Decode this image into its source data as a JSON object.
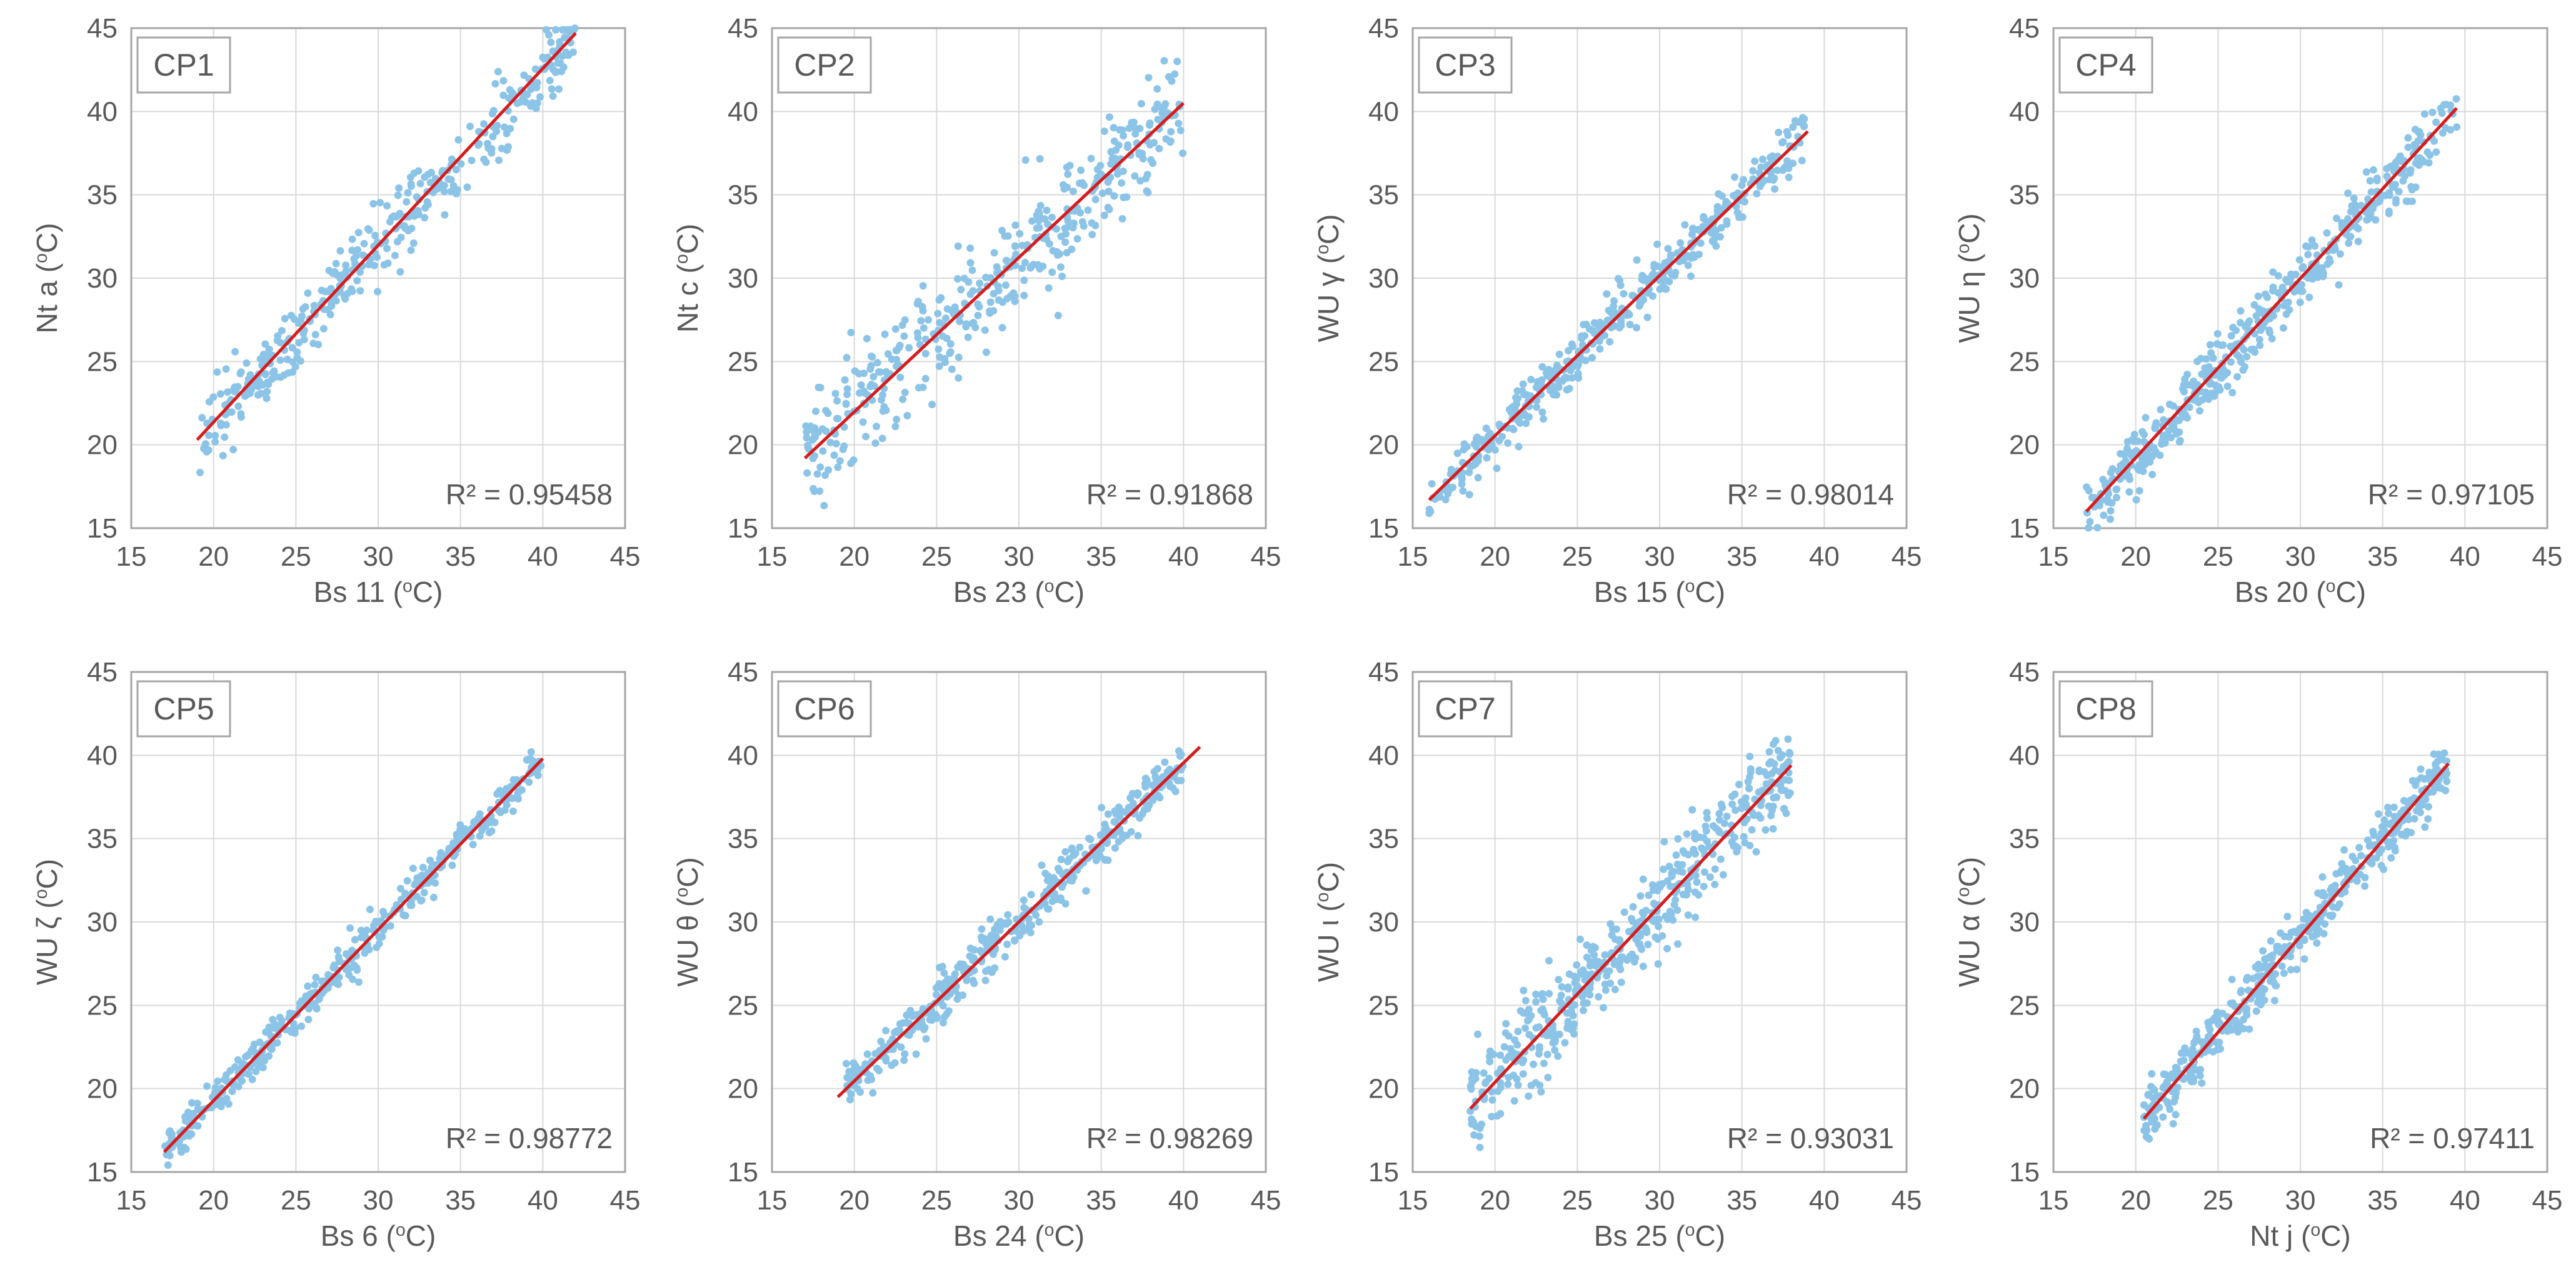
{
  "figure": {
    "description_units": "°C"
  },
  "colors": {
    "points": "#8cc4e8",
    "fit_line": "#d61c1c",
    "grid": "#d9d9d9",
    "axis": "#a6a6a6",
    "text": "#595959"
  },
  "chart_data": [
    {
      "type": "scatter",
      "panel": "CP1",
      "xlabel": "Bs 11 (oC)",
      "ylabel": "Nt a (oC)",
      "xlim": [
        15,
        45
      ],
      "ylim": [
        15,
        45
      ],
      "xticks": [
        15,
        20,
        25,
        30,
        35,
        40,
        45
      ],
      "yticks": [
        15,
        20,
        25,
        30,
        35,
        40,
        45
      ],
      "grid": true,
      "r2_label": "R² = 0.95458",
      "fit_line": {
        "x": [
          19,
          42
        ],
        "y": [
          20.3,
          44.7
        ]
      },
      "points": {
        "n": 380,
        "x_range": [
          19,
          42
        ],
        "slope": 1.06,
        "intercept": -0.0,
        "spread": 1.1,
        "color": "#8cc4e8"
      }
    },
    {
      "type": "scatter",
      "panel": "CP2",
      "xlabel": "Bs 23 (oC)",
      "ylabel": "Nt c (oC)",
      "xlim": [
        15,
        45
      ],
      "ylim": [
        15,
        45
      ],
      "xticks": [
        15,
        20,
        25,
        30,
        35,
        40,
        45
      ],
      "yticks": [
        15,
        20,
        25,
        30,
        35,
        40,
        45
      ],
      "grid": true,
      "r2_label": "R² = 0.91868",
      "fit_line": {
        "x": [
          17,
          40
        ],
        "y": [
          19.2,
          40.5
        ]
      },
      "points": {
        "n": 420,
        "x_range": [
          17,
          40
        ],
        "slope": 0.926,
        "intercept": 3.45,
        "spread": 1.7,
        "color": "#8cc4e8"
      }
    },
    {
      "type": "scatter",
      "panel": "CP3",
      "xlabel": "Bs 15 (oC)",
      "ylabel": "WU γ (oC)",
      "xlim": [
        15,
        45
      ],
      "ylim": [
        15,
        45
      ],
      "xticks": [
        15,
        20,
        25,
        30,
        35,
        40,
        45
      ],
      "yticks": [
        15,
        20,
        25,
        30,
        35,
        40,
        45
      ],
      "grid": true,
      "r2_label": "R² = 0.98014",
      "fit_line": {
        "x": [
          16,
          39
        ],
        "y": [
          16.7,
          38.8
        ]
      },
      "points": {
        "n": 420,
        "x_range": [
          16,
          39
        ],
        "slope": 0.96,
        "intercept": 1.3,
        "spread": 0.8,
        "color": "#8cc4e8"
      }
    },
    {
      "type": "scatter",
      "panel": "CP4",
      "xlabel": "Bs 20 (oC)",
      "ylabel": "WU η (oC)",
      "xlim": [
        15,
        45
      ],
      "ylim": [
        15,
        45
      ],
      "xticks": [
        15,
        20,
        25,
        30,
        35,
        40,
        45
      ],
      "yticks": [
        15,
        20,
        25,
        30,
        35,
        40,
        45
      ],
      "grid": true,
      "r2_label": "R² = 0.97105",
      "fit_line": {
        "x": [
          17,
          39.5
        ],
        "y": [
          16,
          40.2
        ]
      },
      "points": {
        "n": 480,
        "x_range": [
          17,
          39.5
        ],
        "slope": 1.075,
        "intercept": -2.3,
        "spread": 0.9,
        "color": "#8cc4e8"
      }
    },
    {
      "type": "scatter",
      "panel": "CP5",
      "xlabel": "Bs 6 (oC)",
      "ylabel": "WU ζ (oC)",
      "xlim": [
        15,
        45
      ],
      "ylim": [
        15,
        45
      ],
      "xticks": [
        15,
        20,
        25,
        30,
        35,
        40,
        45
      ],
      "yticks": [
        15,
        20,
        25,
        30,
        35,
        40,
        45
      ],
      "grid": true,
      "r2_label": "R² = 0.98772",
      "fit_line": {
        "x": [
          17,
          40
        ],
        "y": [
          16.2,
          39.8
        ]
      },
      "points": {
        "n": 420,
        "x_range": [
          17,
          40
        ],
        "slope": 1.026,
        "intercept": -1.25,
        "spread": 0.6,
        "color": "#8cc4e8"
      }
    },
    {
      "type": "scatter",
      "panel": "CP6",
      "xlabel": "Bs 24 (oC)",
      "ylabel": "WU θ (oC)",
      "xlim": [
        15,
        45
      ],
      "ylim": [
        15,
        45
      ],
      "xticks": [
        15,
        20,
        25,
        30,
        35,
        40,
        45
      ],
      "yticks": [
        15,
        20,
        25,
        30,
        35,
        40,
        45
      ],
      "grid": true,
      "r2_label": "R² = 0.98269",
      "fit_line": {
        "x": [
          19,
          41
        ],
        "y": [
          19.5,
          40.5
        ]
      },
      "points": {
        "n": 420,
        "x_range": [
          19.5,
          40
        ],
        "slope": 0.955,
        "intercept": 1.35,
        "spread": 0.7,
        "color": "#8cc4e8"
      }
    },
    {
      "type": "scatter",
      "panel": "CP7",
      "xlabel": "Bs 25 (oC)",
      "ylabel": "WU ι (oC)",
      "xlim": [
        15,
        45
      ],
      "ylim": [
        15,
        45
      ],
      "xticks": [
        15,
        20,
        25,
        30,
        35,
        40,
        45
      ],
      "yticks": [
        15,
        20,
        25,
        30,
        35,
        40,
        45
      ],
      "grid": true,
      "r2_label": "R² = 0.93031",
      "fit_line": {
        "x": [
          18.5,
          38
        ],
        "y": [
          18.8,
          39.4
        ]
      },
      "points": {
        "n": 480,
        "x_range": [
          18.5,
          38
        ],
        "slope": 1.056,
        "intercept": -0.74,
        "spread": 1.4,
        "color": "#8cc4e8"
      }
    },
    {
      "type": "scatter",
      "panel": "CP8",
      "xlabel": "Nt j (oC)",
      "ylabel": "WU α (oC)",
      "xlim": [
        15,
        45
      ],
      "ylim": [
        15,
        45
      ],
      "xticks": [
        15,
        20,
        25,
        30,
        35,
        40,
        45
      ],
      "yticks": [
        15,
        20,
        25,
        30,
        35,
        40,
        45
      ],
      "grid": true,
      "r2_label": "R² = 0.97411",
      "fit_line": {
        "x": [
          20.5,
          39
        ],
        "y": [
          18.2,
          39.5
        ]
      },
      "points": {
        "n": 460,
        "x_range": [
          20.5,
          39
        ],
        "slope": 1.151,
        "intercept": -5.4,
        "spread": 0.8,
        "color": "#8cc4e8"
      }
    }
  ]
}
